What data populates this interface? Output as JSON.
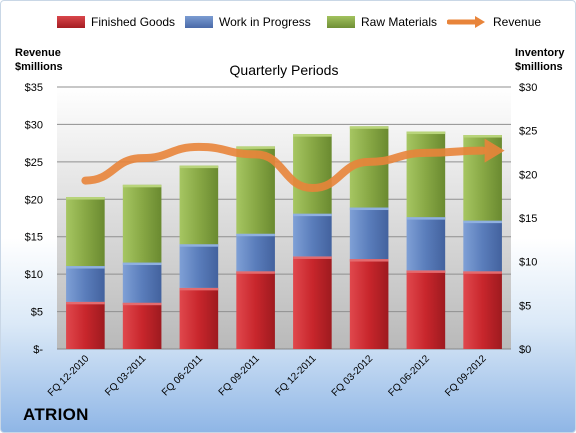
{
  "chart_data": {
    "type": "bar",
    "subtitle": "Quarterly Periods",
    "categories": [
      "FQ 12-2010",
      "FQ 03-2011",
      "FQ 06-2011",
      "FQ 09-2011",
      "FQ 12-2011",
      "FQ 03-2012",
      "FQ 06-2012",
      "FQ 09-2012"
    ],
    "stacked": true,
    "series": [
      {
        "name": "Finished Goods",
        "color": "#c0262b",
        "values": [
          5.4,
          5.3,
          7.0,
          8.9,
          10.6,
          10.3,
          9.0,
          8.9
        ]
      },
      {
        "name": "Work in Progress",
        "color": "#5b7fbd",
        "values": [
          4.1,
          4.6,
          5.0,
          4.3,
          4.9,
          5.9,
          6.1,
          5.8
        ]
      },
      {
        "name": "Raw Materials",
        "color": "#86a843",
        "values": [
          7.9,
          8.9,
          9.0,
          10.0,
          9.1,
          9.3,
          9.8,
          9.8
        ]
      }
    ],
    "line_series": {
      "name": "Revenue",
      "color": "#e8843a",
      "values": [
        22.5,
        25.5,
        27.0,
        26.0,
        21.5,
        25.0,
        26.2,
        26.5
      ]
    },
    "left_axis": {
      "title_line1": "Revenue",
      "title_line2": "$millions",
      "ylim": [
        0,
        35
      ],
      "tick_labels": [
        "$-",
        "$5",
        "$10",
        "$15",
        "$20",
        "$25",
        "$30",
        "$35"
      ]
    },
    "right_axis": {
      "title_line1": "Inventory",
      "title_line2": "$millions",
      "ylim": [
        0,
        30
      ],
      "tick_labels": [
        "$0",
        "$5",
        "$10",
        "$15",
        "$20",
        "$25",
        "$30"
      ]
    },
    "legend_position": "top",
    "grid": true
  },
  "legend": {
    "finished_goods": "Finished Goods",
    "work_in_progress": "Work in Progress",
    "raw_materials": "Raw Materials",
    "revenue": "Revenue"
  },
  "brand": "ATRION"
}
